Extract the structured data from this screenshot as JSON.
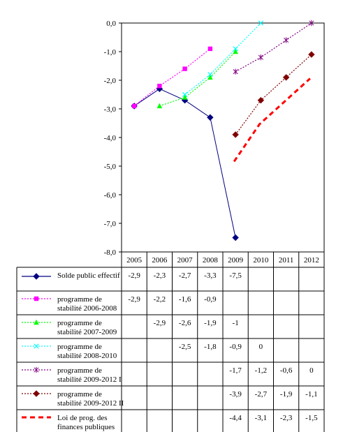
{
  "chart_data": {
    "type": "line",
    "categories": [
      "2005",
      "2006",
      "2007",
      "2008",
      "2009",
      "2010",
      "2011",
      "2012"
    ],
    "y_ticks": [
      "0,0",
      "-1,0",
      "-2,0",
      "-3,0",
      "-4,0",
      "-5,0",
      "-6,0",
      "-7,0",
      "-8,0"
    ],
    "ylim": [
      -8,
      0
    ],
    "grid": false,
    "legend": "data-table-below",
    "series": [
      {
        "name": "Solde public effectif",
        "legend_lines": [
          "Solde public effectif"
        ],
        "color": "#000080",
        "dash": "none",
        "marker": "diamond",
        "values": [
          -2.9,
          -2.3,
          -2.7,
          -3.3,
          -7.5,
          null,
          null,
          null
        ],
        "labels": [
          "-2,9",
          "-2,3",
          "-2,7",
          "-3,3",
          "-7,5",
          "",
          "",
          ""
        ]
      },
      {
        "name": "programme de stabilité 2006-2008",
        "legend_lines": [
          "programme de",
          "stabilité 2006-2008"
        ],
        "color": "#ff00ff",
        "dash": "dot",
        "marker": "square",
        "values": [
          -2.9,
          -2.2,
          -1.6,
          -0.9,
          null,
          null,
          null,
          null
        ],
        "labels": [
          "-2,9",
          "-2,2",
          "-1,6",
          "-0,9",
          "",
          "",
          "",
          ""
        ]
      },
      {
        "name": "programme de stabilité 2007-2009",
        "legend_lines": [
          "programme de",
          "stabilité 2007-2009"
        ],
        "color": "#00ff00",
        "dash": "dot",
        "marker": "triangle",
        "values": [
          null,
          -2.9,
          -2.6,
          -1.9,
          -1,
          null,
          null,
          null
        ],
        "labels": [
          "",
          "-2,9",
          "-2,6",
          "-1,9",
          "-1",
          "",
          "",
          ""
        ]
      },
      {
        "name": "programme de stabilité 2008-2010",
        "legend_lines": [
          "programme de",
          "stabilité 2008-2010"
        ],
        "color": "#00ffff",
        "dash": "dot",
        "marker": "x",
        "values": [
          null,
          null,
          -2.5,
          -1.8,
          -0.9,
          0,
          null,
          null
        ],
        "labels": [
          "",
          "",
          "-2,5",
          "-1,8",
          "-0,9",
          "0",
          "",
          ""
        ]
      },
      {
        "name": "programme de stabilité 2009-2012 I",
        "legend_lines": [
          "programme de",
          "stabilité 2009-2012 I"
        ],
        "color": "#800080",
        "dash": "dot",
        "marker": "star",
        "values": [
          null,
          null,
          null,
          null,
          -1.7,
          -1.2,
          -0.6,
          0
        ],
        "labels": [
          "",
          "",
          "",
          "",
          "-1,7",
          "-1,2",
          "-0,6",
          "0"
        ]
      },
      {
        "name": "programme de stabilité 2009-2012 II",
        "legend_lines": [
          "programme de",
          "stabilité 2009-2012 II"
        ],
        "color": "#800000",
        "dash": "dot",
        "marker": "diamond",
        "values": [
          null,
          null,
          null,
          null,
          -3.9,
          -2.7,
          -1.9,
          -1.1
        ],
        "labels": [
          "",
          "",
          "",
          "",
          "-3,9",
          "-2,7",
          "-1,9",
          "-1,1"
        ]
      },
      {
        "name": "Loi de prog. des finances publiques",
        "legend_lines": [
          "Loi de prog. des",
          "finances publiques"
        ],
        "color": "#ff0000",
        "dash": "dash",
        "marker": "none",
        "values": [
          null,
          null,
          null,
          null,
          -4.4,
          -3.1,
          -2.3,
          -1.5
        ],
        "labels": [
          "",
          "",
          "",
          "",
          "-4,4",
          "-3,1",
          "-2,3",
          "-1,5"
        ]
      }
    ]
  }
}
